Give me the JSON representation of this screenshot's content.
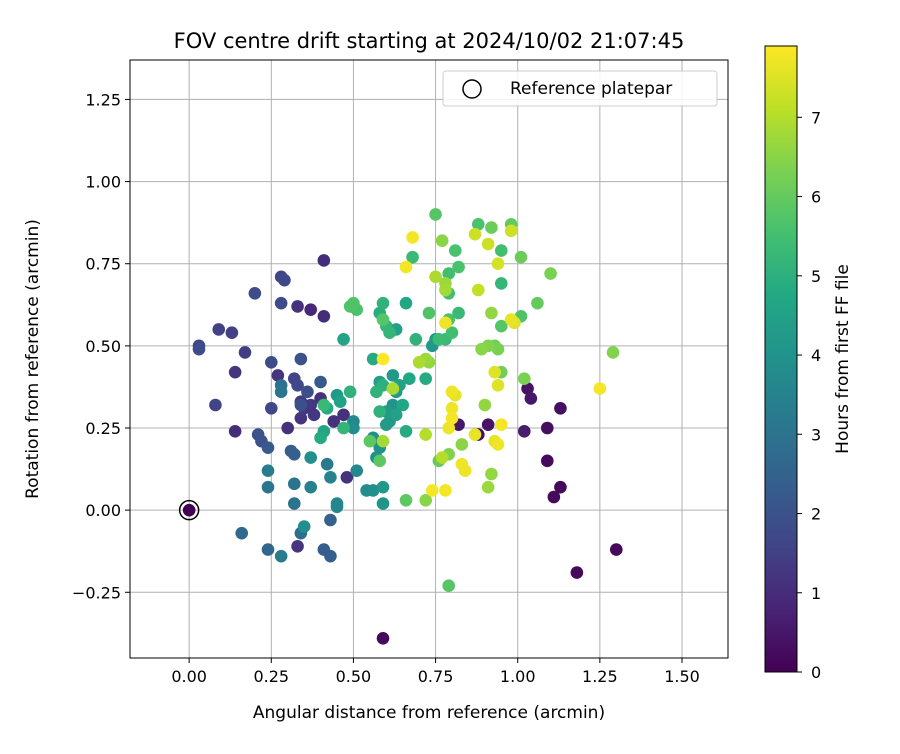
{
  "chart_data": {
    "type": "scatter",
    "title": "FOV centre drift starting at 2024/10/02 21:07:45",
    "xlabel": "Angular distance from reference (arcmin)",
    "ylabel": "Rotation from reference (arcmin)",
    "xlim": [
      -0.18,
      1.64
    ],
    "ylim": [
      -0.45,
      1.37
    ],
    "xticks": [
      0.0,
      0.25,
      0.5,
      0.75,
      1.0,
      1.25,
      1.5
    ],
    "xtick_labels": [
      "0.00",
      "0.25",
      "0.50",
      "0.75",
      "1.00",
      "1.25",
      "1.50"
    ],
    "yticks": [
      -0.25,
      0.0,
      0.25,
      0.5,
      0.75,
      1.0,
      1.25
    ],
    "ytick_labels": [
      "−0.25",
      "0.00",
      "0.25",
      "0.50",
      "0.75",
      "1.00",
      "1.25"
    ],
    "grid": true,
    "legend": {
      "placement": "top-right",
      "label": "Reference platepar"
    },
    "reference_point": {
      "x": 0.0,
      "y": 0.0
    },
    "colorbar": {
      "label": "Hours from first FF file",
      "colormap": "viridis",
      "range": [
        0,
        7.9
      ],
      "ticks": [
        0,
        1,
        2,
        3,
        4,
        5,
        6,
        7
      ],
      "tick_labels": [
        "0",
        "1",
        "2",
        "3",
        "4",
        "5",
        "6",
        "7"
      ]
    },
    "points": [
      [
        0.0,
        0.0,
        0.0
      ],
      [
        0.59,
        -0.39,
        0.2
      ],
      [
        1.3,
        -0.12,
        0.2
      ],
      [
        1.18,
        -0.19,
        0.2
      ],
      [
        1.13,
        0.07,
        0.2
      ],
      [
        1.11,
        0.04,
        0.2
      ],
      [
        1.09,
        0.15,
        0.2
      ],
      [
        1.13,
        0.31,
        0.3
      ],
      [
        1.09,
        0.25,
        0.3
      ],
      [
        1.03,
        0.37,
        0.4
      ],
      [
        1.04,
        0.34,
        0.5
      ],
      [
        1.02,
        0.24,
        0.6
      ],
      [
        0.91,
        0.26,
        0.4
      ],
      [
        0.88,
        0.23,
        0.3
      ],
      [
        0.82,
        0.26,
        0.5
      ],
      [
        0.41,
        0.76,
        1.0
      ],
      [
        0.41,
        0.59,
        1.0
      ],
      [
        0.37,
        0.61,
        0.9
      ],
      [
        0.33,
        0.62,
        1.1
      ],
      [
        0.48,
        0.1,
        1.1
      ],
      [
        0.44,
        0.27,
        1.1
      ],
      [
        0.4,
        0.34,
        1.1
      ],
      [
        0.47,
        0.29,
        1.1
      ],
      [
        0.14,
        0.24,
        1.0
      ],
      [
        0.27,
        0.41,
        1.2
      ],
      [
        0.3,
        0.25,
        1.1
      ],
      [
        0.34,
        0.33,
        1.3
      ],
      [
        0.37,
        0.32,
        1.3
      ],
      [
        0.33,
        -0.11,
        1.2
      ],
      [
        0.14,
        0.42,
        1.2
      ],
      [
        0.17,
        0.48,
        1.4
      ],
      [
        0.34,
        0.28,
        1.2
      ],
      [
        0.35,
        0.31,
        1.3
      ],
      [
        0.38,
        0.29,
        1.3
      ],
      [
        0.09,
        0.55,
        1.5
      ],
      [
        0.13,
        0.54,
        1.5
      ],
      [
        0.28,
        0.71,
        1.6
      ],
      [
        0.29,
        0.7,
        1.7
      ],
      [
        0.03,
        0.5,
        1.7
      ],
      [
        0.03,
        0.49,
        1.8
      ],
      [
        0.08,
        0.32,
        1.6
      ],
      [
        0.25,
        0.31,
        1.7
      ],
      [
        0.2,
        0.66,
        1.8
      ],
      [
        0.25,
        0.45,
        1.8
      ],
      [
        0.32,
        0.4,
        1.6
      ],
      [
        0.33,
        0.38,
        1.7
      ],
      [
        0.34,
        0.46,
        2.0
      ],
      [
        0.36,
        0.36,
        1.9
      ],
      [
        0.34,
        0.32,
        1.9
      ],
      [
        0.21,
        0.23,
        2.0
      ],
      [
        0.22,
        0.21,
        2.0
      ],
      [
        0.24,
        0.19,
        2.2
      ],
      [
        0.31,
        0.18,
        2.3
      ],
      [
        0.32,
        0.17,
        2.4
      ],
      [
        0.4,
        0.39,
        2.2
      ],
      [
        0.28,
        0.63,
        1.8
      ],
      [
        0.41,
        -0.12,
        2.3
      ],
      [
        0.43,
        -0.14,
        2.4
      ],
      [
        0.43,
        -0.03,
        2.5
      ],
      [
        0.34,
        -0.07,
        2.8
      ],
      [
        0.16,
        -0.07,
        2.7
      ],
      [
        0.24,
        -0.12,
        2.6
      ],
      [
        0.28,
        -0.14,
        3.3
      ],
      [
        0.32,
        0.02,
        3.0
      ],
      [
        0.32,
        0.08,
        3.0
      ],
      [
        0.24,
        0.07,
        3.1
      ],
      [
        0.24,
        0.12,
        3.3
      ],
      [
        0.42,
        0.14,
        3.2
      ],
      [
        0.37,
        0.07,
        3.4
      ],
      [
        0.43,
        0.1,
        3.5
      ],
      [
        0.45,
        0.02,
        3.6
      ],
      [
        0.45,
        0.01,
        3.6
      ],
      [
        0.28,
        0.38,
        2.9
      ],
      [
        0.28,
        0.36,
        3.1
      ],
      [
        0.37,
        0.16,
        3.9
      ],
      [
        0.35,
        -0.05,
        3.8
      ],
      [
        0.5,
        0.27,
        3.7
      ],
      [
        0.5,
        0.25,
        3.8
      ],
      [
        0.51,
        0.12,
        3.7
      ],
      [
        0.54,
        0.06,
        3.8
      ],
      [
        0.56,
        0.06,
        3.9
      ],
      [
        0.56,
        0.22,
        3.9
      ],
      [
        0.57,
        0.16,
        4.0
      ],
      [
        0.58,
        0.19,
        4.0
      ],
      [
        0.59,
        0.07,
        4.2
      ],
      [
        0.59,
        0.02,
        4.1
      ],
      [
        0.6,
        0.26,
        4.3
      ],
      [
        0.6,
        0.3,
        4.3
      ],
      [
        0.61,
        0.27,
        4.2
      ],
      [
        0.62,
        0.32,
        4.1
      ],
      [
        0.62,
        0.41,
        4.2
      ],
      [
        0.63,
        0.36,
        4.3
      ],
      [
        0.63,
        0.29,
        4.5
      ],
      [
        0.64,
        0.38,
        4.5
      ],
      [
        0.65,
        0.32,
        4.7
      ],
      [
        0.66,
        0.24,
        4.8
      ],
      [
        0.67,
        0.4,
        4.7
      ],
      [
        0.72,
        0.4,
        4.8
      ],
      [
        0.74,
        0.5,
        4.2
      ],
      [
        0.75,
        0.52,
        4.3
      ],
      [
        0.58,
        0.39,
        4.4
      ],
      [
        0.45,
        0.35,
        4.2
      ],
      [
        0.46,
        0.33,
        4.5
      ],
      [
        0.47,
        0.52,
        4.6
      ],
      [
        0.41,
        0.24,
        4.6
      ],
      [
        0.42,
        0.31,
        4.8
      ],
      [
        0.4,
        0.22,
        4.8
      ],
      [
        0.63,
        0.55,
        4.5
      ],
      [
        0.66,
        0.63,
        4.7
      ],
      [
        0.56,
        0.46,
        4.8
      ],
      [
        0.58,
        0.6,
        4.9
      ],
      [
        0.57,
        0.36,
        5.1
      ],
      [
        0.58,
        0.3,
        5.1
      ],
      [
        0.59,
        0.38,
        5.0
      ],
      [
        0.59,
        0.63,
        5.1
      ],
      [
        0.6,
        0.56,
        5.2
      ],
      [
        0.61,
        0.54,
        5.2
      ],
      [
        0.49,
        0.36,
        5.1
      ],
      [
        0.47,
        0.25,
        5.2
      ],
      [
        0.41,
        0.32,
        5.3
      ],
      [
        0.68,
        0.77,
        5.3
      ],
      [
        0.69,
        0.52,
        5.1
      ],
      [
        0.76,
        0.52,
        5.4
      ],
      [
        0.78,
        0.52,
        5.3
      ],
      [
        0.8,
        0.54,
        5.5
      ],
      [
        0.82,
        0.6,
        5.3
      ],
      [
        0.79,
        0.58,
        5.6
      ],
      [
        0.79,
        0.66,
        5.5
      ],
      [
        0.79,
        0.72,
        5.5
      ],
      [
        0.82,
        0.74,
        5.6
      ],
      [
        0.81,
        0.79,
        5.6
      ],
      [
        0.88,
        0.87,
        5.6
      ],
      [
        0.95,
        0.79,
        5.5
      ],
      [
        0.95,
        0.69,
        5.2
      ],
      [
        0.95,
        0.56,
        5.8
      ],
      [
        1.01,
        0.59,
        5.7
      ],
      [
        0.75,
        0.9,
        5.8
      ],
      [
        0.49,
        0.62,
        5.7
      ],
      [
        0.5,
        0.63,
        5.7
      ],
      [
        0.51,
        0.61,
        5.6
      ],
      [
        0.59,
        0.58,
        5.8
      ],
      [
        0.73,
        0.6,
        5.7
      ],
      [
        0.55,
        0.21,
        5.9
      ],
      [
        0.58,
        0.15,
        5.9
      ],
      [
        0.66,
        0.03,
        5.9
      ],
      [
        0.79,
        -0.23,
        5.8
      ],
      [
        0.76,
        0.15,
        6.0
      ],
      [
        0.92,
        0.86,
        6.1
      ],
      [
        0.98,
        0.87,
        6.0
      ],
      [
        1.01,
        0.77,
        6.1
      ],
      [
        1.06,
        0.63,
        6.0
      ],
      [
        1.1,
        0.72,
        6.3
      ],
      [
        0.93,
        0.5,
        6.2
      ],
      [
        0.94,
        0.49,
        6.3
      ],
      [
        0.91,
        0.5,
        6.4
      ],
      [
        0.95,
        0.42,
        6.2
      ],
      [
        0.92,
        0.6,
        6.6
      ],
      [
        0.89,
        0.49,
        6.5
      ],
      [
        1.02,
        0.4,
        6.3
      ],
      [
        0.9,
        0.32,
        6.6
      ],
      [
        0.83,
        0.2,
        6.5
      ],
      [
        0.79,
        0.17,
        6.4
      ],
      [
        0.92,
        0.11,
        6.6
      ],
      [
        0.91,
        0.07,
        6.7
      ],
      [
        0.72,
        0.03,
        6.5
      ],
      [
        0.73,
        0.45,
        6.6
      ],
      [
        0.72,
        0.46,
        6.7
      ],
      [
        0.59,
        0.21,
        6.8
      ],
      [
        0.62,
        0.37,
        6.9
      ],
      [
        0.7,
        0.45,
        6.9
      ],
      [
        0.77,
        0.82,
        6.5
      ],
      [
        0.78,
        0.69,
        6.7
      ],
      [
        0.78,
        0.67,
        6.8
      ],
      [
        0.75,
        0.71,
        6.9
      ],
      [
        0.72,
        0.23,
        7.0
      ],
      [
        0.77,
        0.16,
        7.0
      ],
      [
        1.29,
        0.48,
        6.4
      ],
      [
        0.88,
        0.67,
        7.2
      ],
      [
        0.91,
        0.81,
        7.3
      ],
      [
        0.87,
        0.84,
        7.3
      ],
      [
        0.94,
        0.75,
        7.4
      ],
      [
        0.98,
        0.85,
        7.3
      ],
      [
        0.99,
        0.57,
        7.5
      ],
      [
        0.98,
        0.58,
        7.6
      ],
      [
        0.93,
        0.42,
        7.5
      ],
      [
        0.94,
        0.38,
        7.5
      ],
      [
        0.93,
        0.21,
        7.6
      ],
      [
        0.94,
        0.2,
        7.7
      ],
      [
        0.87,
        0.23,
        7.6
      ],
      [
        0.83,
        0.14,
        7.7
      ],
      [
        0.84,
        0.12,
        7.7
      ],
      [
        0.8,
        0.36,
        7.7
      ],
      [
        0.81,
        0.35,
        7.6
      ],
      [
        0.8,
        0.31,
        7.7
      ],
      [
        0.8,
        0.28,
        7.8
      ],
      [
        0.79,
        0.25,
        7.7
      ],
      [
        0.78,
        0.06,
        7.8
      ],
      [
        0.74,
        0.06,
        7.8
      ],
      [
        0.68,
        0.83,
        7.8
      ],
      [
        0.66,
        0.74,
        7.8
      ],
      [
        0.59,
        0.46,
        7.9
      ],
      [
        0.95,
        0.26,
        7.8
      ],
      [
        1.25,
        0.37,
        7.8
      ],
      [
        0.78,
        0.57,
        7.7
      ]
    ]
  }
}
